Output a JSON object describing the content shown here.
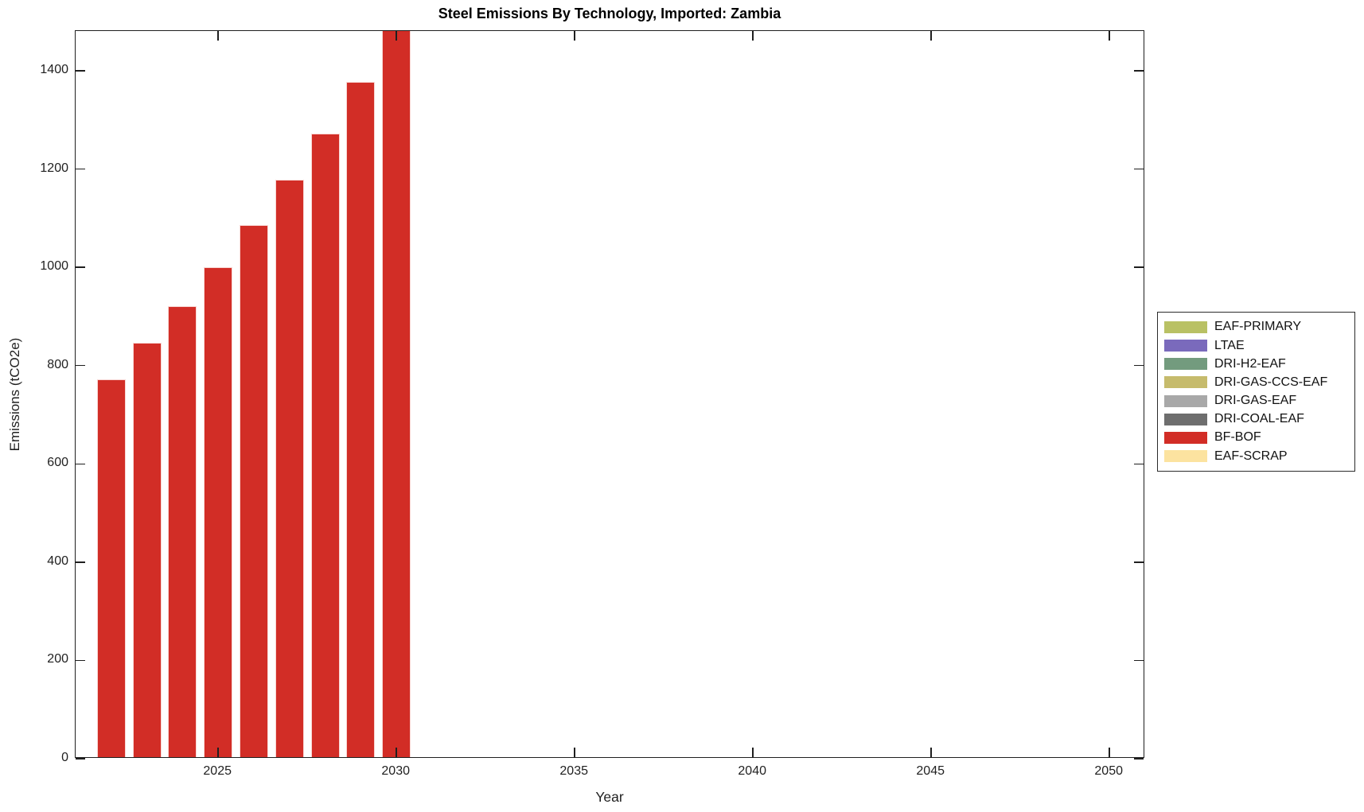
{
  "chart_data": {
    "type": "bar",
    "title": "Steel Emissions By Technology, Imported: Zambia",
    "xlabel": "Year",
    "ylabel": "Emissions (tCO2e)",
    "xlim": [
      2021,
      2051
    ],
    "ylim": [
      0,
      1481
    ],
    "xticks": [
      2025,
      2030,
      2035,
      2040,
      2045,
      2050
    ],
    "yticks": [
      0,
      200,
      400,
      600,
      800,
      1000,
      1200,
      1400
    ],
    "grid": "off",
    "bar_width_years": 0.8,
    "bar_color": "#d22d26",
    "visible_series": "BF-BOF",
    "x": [
      2022,
      2023,
      2024,
      2025,
      2026,
      2027,
      2028,
      2029,
      2030
    ],
    "values": [
      772,
      846,
      921,
      1001,
      1086,
      1178,
      1273,
      1377,
      1490
    ],
    "clipped_at_ymax_x": [
      2030
    ],
    "legend": {
      "position": "outside-right",
      "entries": [
        {
          "label": "EAF-PRIMARY",
          "color": "#b9c164"
        },
        {
          "label": "LTAE",
          "color": "#7a6abc"
        },
        {
          "label": "DRI-H2-EAF",
          "color": "#739b7e"
        },
        {
          "label": "DRI-GAS-CCS-EAF",
          "color": "#c6bb6c"
        },
        {
          "label": "DRI-GAS-EAF",
          "color": "#a8a8a8"
        },
        {
          "label": "DRI-COAL-EAF",
          "color": "#6e6e6e"
        },
        {
          "label": "BF-BOF",
          "color": "#d22d26"
        },
        {
          "label": "EAF-SCRAP",
          "color": "#fce3a0"
        }
      ]
    }
  }
}
